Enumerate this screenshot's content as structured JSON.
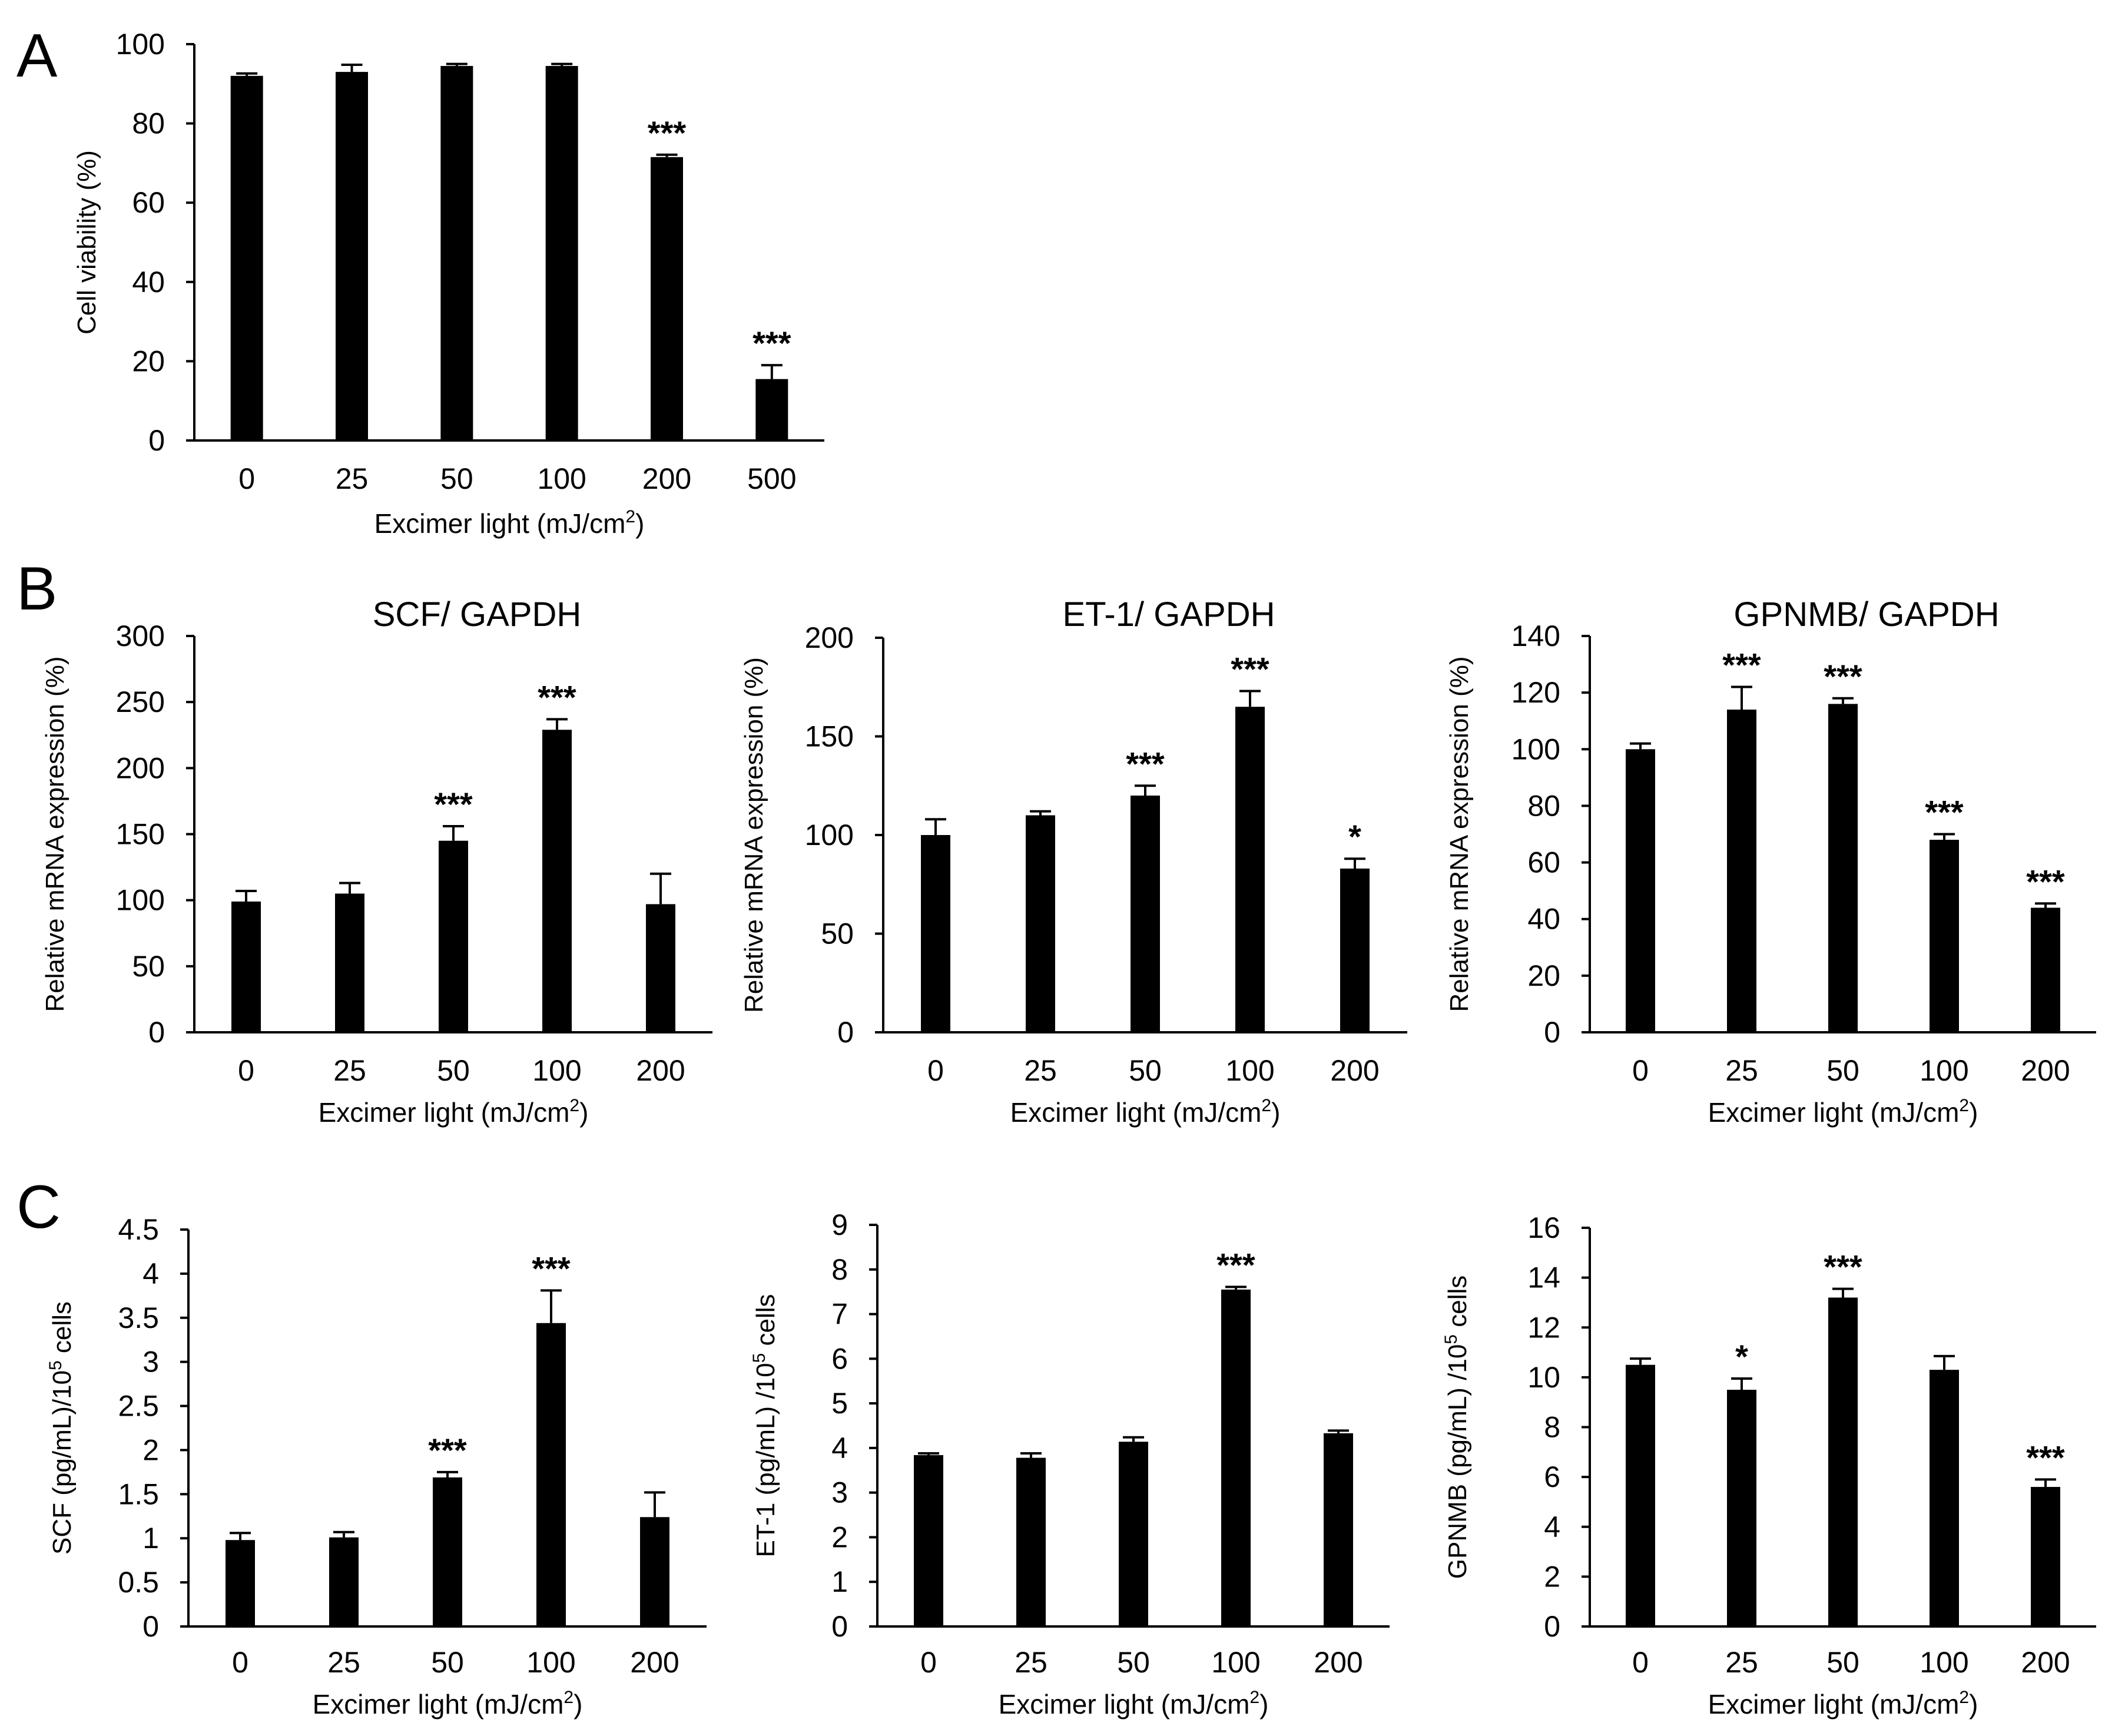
{
  "figure": {
    "panel_labels": [
      "A",
      "B",
      "C"
    ]
  },
  "chart_data": [
    {
      "type": "bar",
      "panel": "A",
      "title": "",
      "xlabel": "Excimer light (mJ/cm",
      "xlabel_sup": "2",
      "xlabel_end": ")",
      "ylabel": "Cell viability (%)",
      "ylabel_sup": "",
      "ylabel_end": "",
      "categories": [
        "0",
        "25",
        "50",
        "100",
        "200",
        "500"
      ],
      "values": [
        92,
        93,
        94.5,
        94.5,
        71.5,
        15.5
      ],
      "errors": [
        0.6,
        1.8,
        0.5,
        0.5,
        0.6,
        3.5
      ],
      "significance": [
        "",
        "",
        "",
        "",
        "***",
        "***"
      ],
      "ylim": [
        0,
        100
      ],
      "yticks": [
        "0",
        "20",
        "40",
        "60",
        "80",
        "100"
      ]
    },
    {
      "type": "bar",
      "panel": "B",
      "title": "SCF/ GAPDH",
      "xlabel": "Excimer light (mJ/cm",
      "xlabel_sup": "2",
      "xlabel_end": ")",
      "ylabel": "Relative mRNA expression (%)",
      "ylabel_sup": "",
      "ylabel_end": "",
      "categories": [
        "0",
        "25",
        "50",
        "100",
        "200"
      ],
      "values": [
        99,
        105,
        145,
        229,
        97
      ],
      "errors": [
        8,
        8,
        11,
        8,
        23
      ],
      "significance": [
        "",
        "",
        "***",
        "***",
        ""
      ],
      "ylim": [
        0,
        300
      ],
      "yticks": [
        "0",
        "50",
        "100",
        "150",
        "200",
        "250",
        "300"
      ]
    },
    {
      "type": "bar",
      "panel": "B",
      "title": "ET-1/ GAPDH",
      "xlabel": "Excimer light (mJ/cm",
      "xlabel_sup": "2",
      "xlabel_end": ")",
      "ylabel": "Relative mRNA expression (%)",
      "ylabel_sup": "",
      "ylabel_end": "",
      "categories": [
        "0",
        "25",
        "50",
        "100",
        "200"
      ],
      "values": [
        100,
        110,
        120,
        165,
        83
      ],
      "errors": [
        8,
        2,
        5,
        8,
        5
      ],
      "significance": [
        "",
        "",
        "***",
        "***",
        "*"
      ],
      "ylim": [
        0,
        200
      ],
      "yticks": [
        "0",
        "50",
        "100",
        "150",
        "200"
      ]
    },
    {
      "type": "bar",
      "panel": "B",
      "title": "GPNMB/ GAPDH",
      "xlabel": "Excimer light (mJ/cm",
      "xlabel_sup": "2",
      "xlabel_end": ")",
      "ylabel": "Relative mRNA expression (%)",
      "ylabel_sup": "",
      "ylabel_end": "",
      "categories": [
        "0",
        "25",
        "50",
        "100",
        "200"
      ],
      "values": [
        100,
        114,
        116,
        68,
        44
      ],
      "errors": [
        2,
        8,
        2,
        2,
        1.5
      ],
      "significance": [
        "",
        "***",
        "***",
        "***",
        "***"
      ],
      "ylim": [
        0,
        140
      ],
      "yticks": [
        "0",
        "20",
        "40",
        "60",
        "80",
        "100",
        "120",
        "140"
      ]
    },
    {
      "type": "bar",
      "panel": "C",
      "title": "",
      "xlabel": "Excimer light (mJ/cm",
      "xlabel_sup": "2",
      "xlabel_end": ")",
      "ylabel": "SCF (pg/mL)/10",
      "ylabel_sup": "5",
      "ylabel_end": " cells",
      "categories": [
        "0",
        "25",
        "50",
        "100",
        "200"
      ],
      "values": [
        0.98,
        1.01,
        1.69,
        3.44,
        1.24
      ],
      "errors": [
        0.08,
        0.06,
        0.06,
        0.37,
        0.28
      ],
      "significance": [
        "",
        "",
        "***",
        "***",
        ""
      ],
      "ylim": [
        0,
        4.5
      ],
      "yticks": [
        "0",
        "0.5",
        "1",
        "1.5",
        "2",
        "2.5",
        "3",
        "3.5",
        "4",
        "4.5"
      ]
    },
    {
      "type": "bar",
      "panel": "C",
      "title": "",
      "xlabel": "Excimer light (mJ/cm",
      "xlabel_sup": "2",
      "xlabel_end": ")",
      "ylabel": "ET-1 (pg/mL) /10",
      "ylabel_sup": "5",
      "ylabel_end": " cells",
      "categories": [
        "0",
        "25",
        "50",
        "100",
        "200"
      ],
      "values": [
        3.84,
        3.78,
        4.14,
        7.55,
        4.33
      ],
      "errors": [
        0.04,
        0.1,
        0.1,
        0.06,
        0.06
      ],
      "significance": [
        "",
        "",
        "",
        "***",
        ""
      ],
      "ylim": [
        0,
        9
      ],
      "yticks": [
        "0",
        "1",
        "2",
        "3",
        "4",
        "5",
        "6",
        "7",
        "8",
        "9"
      ]
    },
    {
      "type": "bar",
      "panel": "C",
      "title": "",
      "xlabel": "Excimer light (mJ/cm",
      "xlabel_sup": "2",
      "xlabel_end": ")",
      "ylabel": "GPNMB (pg/mL) /10",
      "ylabel_sup": "5",
      "ylabel_end": " cells",
      "categories": [
        "0",
        "25",
        "50",
        "100",
        "200"
      ],
      "values": [
        10.5,
        9.5,
        13.2,
        10.3,
        5.6
      ],
      "errors": [
        0.25,
        0.45,
        0.35,
        0.55,
        0.3
      ],
      "significance": [
        "",
        "*",
        "***",
        "",
        "***"
      ],
      "ylim": [
        0,
        16
      ],
      "yticks": [
        "0",
        "2",
        "4",
        "6",
        "8",
        "10",
        "12",
        "14",
        "16"
      ]
    }
  ]
}
